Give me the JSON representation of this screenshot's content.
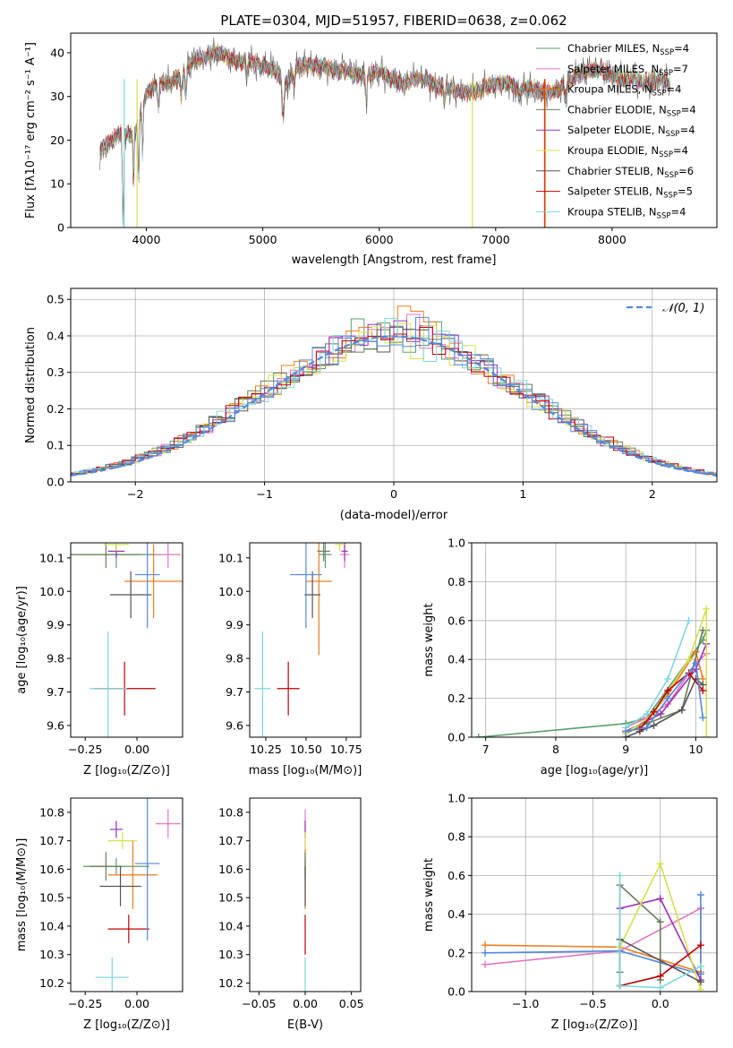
{
  "colors": {
    "chab_miles": "#5a9e6f",
    "salp_miles": "#e377c2",
    "krou_miles": "#ee7d1e",
    "chab_elodie": "#687d5a",
    "salp_elodie": "#9a31b5",
    "krou_elodie": "#d4e04a",
    "chab_stelib": "#555555",
    "salp_stelib": "#c00000",
    "krou_stelib": "#7fd8db",
    "blue": "#5588dd"
  },
  "chart_data": [
    {
      "id": "spectrum",
      "type": "line",
      "title": "PLATE=0304, MJD=51957, FIBERID=0638, z=0.062",
      "xlabel": "wavelength [Angstrom, rest frame]",
      "ylabel": "Flux [fλ10⁻¹⁷ erg cm⁻² s⁻¹ A⁻¹]",
      "xlim": [
        3350,
        8900
      ],
      "ylim": [
        0,
        44.5
      ],
      "xticks": [
        "4000",
        "5000",
        "6000",
        "7000",
        "8000"
      ],
      "yticks": [
        "0",
        "10",
        "20",
        "30",
        "40"
      ],
      "legend_position": "top-right",
      "continuum_x": [
        3600,
        3700,
        3800,
        3900,
        4000,
        4100,
        4200,
        4300,
        4400,
        4500,
        4600,
        4700,
        4800,
        4900,
        5000,
        5100,
        5200,
        5300,
        5400,
        5500,
        5600,
        5700,
        5800,
        5900,
        6000,
        6100,
        6200,
        6300,
        6400,
        6500,
        6600,
        6700,
        6800,
        6900,
        7000,
        7100,
        7200,
        7300,
        7400,
        7500,
        7600,
        7700,
        7800,
        7900,
        8000,
        8100,
        8200,
        8300,
        8400,
        8500
      ],
      "continuum_y": [
        17,
        20,
        22,
        21,
        31,
        33,
        33,
        35,
        38,
        39,
        40,
        39,
        38,
        38,
        37,
        36,
        33,
        37,
        37,
        37,
        36,
        36,
        35,
        35,
        36,
        34,
        33,
        34,
        34,
        32,
        32,
        31,
        31,
        32,
        33,
        33,
        32,
        32,
        31,
        31,
        33,
        35,
        36,
        36,
        35,
        34,
        34,
        33,
        34,
        33
      ],
      "series": [
        {
          "name": "Chabrier MILES, N_SSP=4",
          "color_key": "chab_miles"
        },
        {
          "name": "Salpeter MILES, N_SSP=7",
          "color_key": "salp_miles"
        },
        {
          "name": "Kroupa MILES, N_SSP=4",
          "color_key": "krou_miles"
        },
        {
          "name": "Chabrier ELODIE, N_SSP=4",
          "color_key": "chab_elodie"
        },
        {
          "name": "Salpeter ELODIE, N_SSP=4",
          "color_key": "salp_elodie"
        },
        {
          "name": "Kroupa ELODIE, N_SSP=4",
          "color_key": "krou_elodie"
        },
        {
          "name": "Chabrier STELIB, N_SSP=6",
          "color_key": "chab_stelib"
        },
        {
          "name": "Salpeter STELIB, N_SSP=5",
          "color_key": "salp_stelib"
        },
        {
          "name": "Kroupa STELIB, N_SSP=4",
          "color_key": "krou_stelib"
        }
      ],
      "legend": [
        {
          "main": "Chabrier MILES, N",
          "sub": "SSP",
          "tail": "=4",
          "color_key": "chab_miles"
        },
        {
          "main": "Salpeter MILES, N",
          "sub": "SSP",
          "tail": "=7",
          "color_key": "salp_miles"
        },
        {
          "main": "Kroupa MILES, N",
          "sub": "SSP",
          "tail": "=4",
          "color_key": "krou_miles"
        },
        {
          "main": "Chabrier ELODIE, N",
          "sub": "SSP",
          "tail": "=4",
          "color_key": "chab_elodie"
        },
        {
          "main": "Salpeter ELODIE, N",
          "sub": "SSP",
          "tail": "=4",
          "color_key": "salp_elodie"
        },
        {
          "main": "Kroupa ELODIE, N",
          "sub": "SSP",
          "tail": "=4",
          "color_key": "krou_elodie"
        },
        {
          "main": "Chabrier STELIB, N",
          "sub": "SSP",
          "tail": "=6",
          "color_key": "chab_stelib"
        },
        {
          "main": "Salpeter STELIB, N",
          "sub": "SSP",
          "tail": "=5",
          "color_key": "salp_stelib"
        },
        {
          "main": "Kroupa STELIB, N",
          "sub": "SSP",
          "tail": "=4",
          "color_key": "krou_stelib"
        }
      ]
    },
    {
      "id": "residuals",
      "type": "histogram",
      "xlabel": "(data-model)/error",
      "ylabel": "Normed distribution",
      "xlim": [
        -2.5,
        2.5
      ],
      "ylim": [
        0,
        0.53
      ],
      "xticks": [
        "−2",
        "−1",
        "0",
        "1",
        "2"
      ],
      "yticks": [
        "0.0",
        "0.1",
        "0.2",
        "0.3",
        "0.4",
        "0.5"
      ],
      "grid": true,
      "bin_width": 0.1,
      "legend_label": "𝒩(0, 1)",
      "legend_position": "top-right",
      "gaussian": {
        "mu": 0,
        "sigma": 1,
        "color_key": "blue"
      },
      "histogram_color_keys": [
        "chab_miles",
        "salp_miles",
        "krou_miles",
        "chab_elodie",
        "salp_elodie",
        "krou_elodie",
        "chab_stelib",
        "salp_stelib",
        "krou_stelib",
        "blue"
      ]
    },
    {
      "id": "age-vs-Z",
      "type": "errorbar",
      "xlabel": "Z [log₁₀(Z/Z⊙)]",
      "ylabel": "age  [log₁₀(age/yr)]",
      "xlim": [
        -0.32,
        0.22
      ],
      "ylim": [
        9.565,
        10.145
      ],
      "xticks": [
        "−0.25",
        "0.00"
      ],
      "xtick_values": [
        -0.25,
        0.0
      ],
      "yticks": [
        "9.6",
        "9.7",
        "9.8",
        "9.9",
        "10.0",
        "10.1"
      ],
      "ytick_values": [
        9.6,
        9.7,
        9.8,
        9.9,
        10.0,
        10.1
      ],
      "points": [
        {
          "x": -0.1,
          "y": 10.11,
          "xerr": 0.22,
          "yerr": 0.04,
          "color_key": "chab_miles"
        },
        {
          "x": 0.15,
          "y": 10.11,
          "xerr": 0.06,
          "yerr": 0.04,
          "color_key": "salp_miles"
        },
        {
          "x": 0.08,
          "y": 10.03,
          "xerr": 0.14,
          "yerr": 0.11,
          "color_key": "krou_miles"
        },
        {
          "x": -0.15,
          "y": 10.11,
          "xerr": 0.17,
          "yerr": 0.04,
          "color_key": "chab_elodie"
        },
        {
          "x": -0.1,
          "y": 10.12,
          "xerr": 0.04,
          "yerr": 0.02,
          "color_key": "salp_elodie"
        },
        {
          "x": -0.1,
          "y": 10.14,
          "xerr": 0.06,
          "yerr": 0.02,
          "color_key": "krou_elodie"
        },
        {
          "x": -0.03,
          "y": 9.99,
          "xerr": 0.1,
          "yerr": 0.07,
          "color_key": "chab_stelib"
        },
        {
          "x": -0.06,
          "y": 9.71,
          "xerr": 0.15,
          "yerr": 0.08,
          "color_key": "salp_stelib"
        },
        {
          "x": -0.14,
          "y": 9.71,
          "xerr": 0.09,
          "yerr": 0.17,
          "color_key": "krou_stelib"
        },
        {
          "x": 0.05,
          "y": 10.05,
          "xerr": 0.06,
          "yerr": 0.16,
          "color_key": "blue"
        }
      ]
    },
    {
      "id": "age-vs-mass",
      "type": "errorbar",
      "xlabel": "mass [log₁₀(M/M⊙)]",
      "xlim": [
        10.15,
        10.84
      ],
      "ylim": [
        9.565,
        10.145
      ],
      "xticks": [
        "10.25",
        "10.50",
        "10.75"
      ],
      "xtick_values": [
        10.25,
        10.5,
        10.75
      ],
      "yticks": [
        "9.6",
        "9.7",
        "9.8",
        "9.9",
        "10.0",
        "10.1"
      ],
      "ytick_values": [
        9.6,
        9.7,
        9.8,
        9.9,
        10.0,
        10.1
      ],
      "points": [
        {
          "x": 10.62,
          "y": 10.11,
          "xerr": 0.04,
          "yerr": 0.04,
          "color_key": "chab_miles"
        },
        {
          "x": 10.74,
          "y": 10.11,
          "xerr": 0.03,
          "yerr": 0.04,
          "color_key": "salp_miles"
        },
        {
          "x": 10.58,
          "y": 10.03,
          "xerr": 0.08,
          "yerr": 0.22,
          "color_key": "krou_miles"
        },
        {
          "x": 10.61,
          "y": 10.12,
          "xerr": 0.04,
          "yerr": 0.03,
          "color_key": "chab_elodie"
        },
        {
          "x": 10.74,
          "y": 10.12,
          "xerr": 0.02,
          "yerr": 0.03,
          "color_key": "salp_elodie"
        },
        {
          "x": 10.71,
          "y": 10.14,
          "xerr": 0.03,
          "yerr": 0.02,
          "color_key": "krou_elodie"
        },
        {
          "x": 10.54,
          "y": 9.99,
          "xerr": 0.05,
          "yerr": 0.07,
          "color_key": "chab_stelib"
        },
        {
          "x": 10.39,
          "y": 9.71,
          "xerr": 0.07,
          "yerr": 0.08,
          "color_key": "salp_stelib"
        },
        {
          "x": 10.23,
          "y": 9.71,
          "xerr": 0.05,
          "yerr": 0.17,
          "color_key": "krou_stelib"
        },
        {
          "x": 10.5,
          "y": 10.05,
          "xerr": 0.1,
          "yerr": 0.16,
          "color_key": "blue"
        }
      ]
    },
    {
      "id": "weight-vs-age",
      "type": "line",
      "xlabel": "age  [log₁₀(age/yr)]",
      "ylabel": "mass weight",
      "xlim": [
        6.8,
        10.3
      ],
      "ylim": [
        0,
        1
      ],
      "xticks": [
        "7",
        "8",
        "9",
        "10"
      ],
      "xtick_values": [
        7,
        8,
        9,
        10
      ],
      "yticks": [
        "0.0",
        "0.2",
        "0.4",
        "0.6",
        "0.8",
        "1.0"
      ],
      "ytick_values": [
        0,
        0.2,
        0.4,
        0.6,
        0.8,
        1.0
      ],
      "grid": true,
      "series": [
        {
          "color_key": "chab_miles",
          "x": [
            6.9,
            9.0,
            9.3,
            10.1,
            10.15
          ],
          "y": [
            0.0,
            0.07,
            0.1,
            0.5,
            0.55
          ]
        },
        {
          "color_key": "salp_miles",
          "x": [
            9.0,
            9.3,
            9.6,
            10.0,
            10.15
          ],
          "y": [
            0.05,
            0.1,
            0.17,
            0.38,
            0.43
          ]
        },
        {
          "color_key": "krou_miles",
          "x": [
            9.0,
            9.3,
            9.6,
            10.0,
            10.1
          ],
          "y": [
            0.03,
            0.08,
            0.22,
            0.44,
            0.3
          ]
        },
        {
          "color_key": "chab_elodie",
          "x": [
            9.0,
            9.3,
            9.8,
            10.1
          ],
          "y": [
            0.02,
            0.07,
            0.14,
            0.55
          ]
        },
        {
          "color_key": "salp_elodie",
          "x": [
            9.0,
            9.5,
            10.0,
            10.15
          ],
          "y": [
            0.03,
            0.12,
            0.35,
            0.48
          ]
        },
        {
          "color_key": "krou_elodie",
          "x": [
            9.0,
            9.4,
            9.9,
            10.15,
            10.15
          ],
          "y": [
            0.02,
            0.12,
            0.4,
            0.66,
            0.0
          ]
        },
        {
          "color_key": "chab_stelib",
          "x": [
            9.0,
            9.2,
            9.4,
            9.8,
            10.0,
            10.1
          ],
          "y": [
            0.0,
            0.03,
            0.06,
            0.14,
            0.3,
            0.27
          ]
        },
        {
          "color_key": "salp_stelib",
          "x": [
            9.2,
            9.4,
            9.6,
            9.9,
            10.1
          ],
          "y": [
            0.04,
            0.13,
            0.24,
            0.33,
            0.24
          ]
        },
        {
          "color_key": "krou_stelib",
          "x": [
            9.0,
            9.3,
            9.6,
            9.9
          ],
          "y": [
            0.05,
            0.12,
            0.3,
            0.6
          ]
        },
        {
          "color_key": "blue",
          "x": [
            9.0,
            9.3,
            9.6,
            10.0,
            10.1
          ],
          "y": [
            0.03,
            0.05,
            0.2,
            0.38,
            0.1
          ]
        }
      ]
    },
    {
      "id": "mass-vs-Z",
      "type": "errorbar",
      "xlabel": "Z [log₁₀(Z/Z⊙)]",
      "ylabel": "mass [log₁₀(M/M⊙)]",
      "xlim": [
        -0.32,
        0.22
      ],
      "ylim": [
        10.17,
        10.85
      ],
      "xticks": [
        "−0.25",
        "0.00"
      ],
      "xtick_values": [
        -0.25,
        0.0
      ],
      "yticks": [
        "10.2",
        "10.3",
        "10.4",
        "10.5",
        "10.6",
        "10.7",
        "10.8"
      ],
      "ytick_values": [
        10.2,
        10.3,
        10.4,
        10.5,
        10.6,
        10.7,
        10.8
      ],
      "points": [
        {
          "x": -0.1,
          "y": 10.61,
          "xerr": 0.16,
          "yerr": 0.03,
          "color_key": "chab_miles"
        },
        {
          "x": 0.15,
          "y": 10.76,
          "xerr": 0.06,
          "yerr": 0.05,
          "color_key": "salp_miles"
        },
        {
          "x": -0.02,
          "y": 10.58,
          "xerr": 0.12,
          "yerr": 0.12,
          "color_key": "krou_miles"
        },
        {
          "x": -0.15,
          "y": 10.61,
          "xerr": 0.08,
          "yerr": 0.05,
          "color_key": "chab_elodie"
        },
        {
          "x": -0.1,
          "y": 10.74,
          "xerr": 0.03,
          "yerr": 0.03,
          "color_key": "salp_elodie"
        },
        {
          "x": -0.07,
          "y": 10.7,
          "xerr": 0.07,
          "yerr": 0.03,
          "color_key": "krou_elodie"
        },
        {
          "x": -0.08,
          "y": 10.54,
          "xerr": 0.1,
          "yerr": 0.07,
          "color_key": "chab_stelib"
        },
        {
          "x": -0.04,
          "y": 10.39,
          "xerr": 0.1,
          "yerr": 0.05,
          "color_key": "salp_stelib"
        },
        {
          "x": -0.12,
          "y": 10.22,
          "xerr": 0.08,
          "yerr": 0.07,
          "color_key": "krou_stelib"
        },
        {
          "x": 0.05,
          "y": 10.62,
          "xerr": 0.06,
          "yerr": 0.27,
          "color_key": "blue"
        }
      ]
    },
    {
      "id": "mass-vs-EBV",
      "type": "errorbar",
      "xlabel": "E(B-V)",
      "xlim": [
        -0.06,
        0.06
      ],
      "ylim": [
        10.17,
        10.85
      ],
      "xticks": [
        "−0.05",
        "0.00",
        "0.05"
      ],
      "xtick_values": [
        -0.05,
        0.0,
        0.05
      ],
      "yticks": [
        "10.2",
        "10.3",
        "10.4",
        "10.5",
        "10.6",
        "10.7",
        "10.8"
      ],
      "ytick_values": [
        10.2,
        10.3,
        10.4,
        10.5,
        10.6,
        10.7,
        10.8
      ],
      "points": [
        {
          "x": 0,
          "y": 10.61,
          "xerr": 0,
          "yerr": 0.03,
          "color_key": "chab_miles"
        },
        {
          "x": 0,
          "y": 10.76,
          "xerr": 0,
          "yerr": 0.05,
          "color_key": "salp_miles"
        },
        {
          "x": 0,
          "y": 10.58,
          "xerr": 0,
          "yerr": 0.12,
          "color_key": "krou_miles"
        },
        {
          "x": 0,
          "y": 10.61,
          "xerr": 0,
          "yerr": 0.05,
          "color_key": "chab_elodie"
        },
        {
          "x": 0,
          "y": 10.74,
          "xerr": 0,
          "yerr": 0.03,
          "color_key": "salp_elodie"
        },
        {
          "x": 0,
          "y": 10.7,
          "xerr": 0,
          "yerr": 0.03,
          "color_key": "krou_elodie"
        },
        {
          "x": 0,
          "y": 10.54,
          "xerr": 0,
          "yerr": 0.07,
          "color_key": "chab_stelib"
        },
        {
          "x": 0,
          "y": 10.37,
          "xerr": 0,
          "yerr": 0.07,
          "color_key": "salp_stelib"
        },
        {
          "x": 0,
          "y": 10.22,
          "xerr": 0,
          "yerr": 0.07,
          "color_key": "krou_stelib"
        }
      ]
    },
    {
      "id": "weight-vs-Z",
      "type": "line",
      "xlabel": "Z [log₁₀(Z/Z⊙)]",
      "ylabel": "mass weight",
      "xlim": [
        -1.4,
        0.42
      ],
      "ylim": [
        0,
        1
      ],
      "xticks": [
        "−1.0",
        "−0.5",
        "0.0"
      ],
      "xtick_values": [
        -1.0,
        -0.5,
        0.0
      ],
      "yticks": [
        "0.0",
        "0.2",
        "0.4",
        "0.6",
        "0.8",
        "1.0"
      ],
      "ytick_values": [
        0,
        0.2,
        0.4,
        0.6,
        0.8,
        1.0
      ],
      "grid": true,
      "series": [
        {
          "color_key": "krou_miles",
          "x": [
            -1.3,
            -0.3,
            0.3,
            0.3
          ],
          "y": [
            0.24,
            0.23,
            0.1,
            0.43
          ]
        },
        {
          "color_key": "salp_miles",
          "x": [
            -1.3,
            -0.3,
            0.3
          ],
          "y": [
            0.14,
            0.21,
            0.43
          ]
        },
        {
          "color_key": "blue",
          "x": [
            -1.3,
            -0.3,
            0.3,
            0.3
          ],
          "y": [
            0.2,
            0.21,
            0.09,
            0.5
          ]
        },
        {
          "color_key": "chab_elodie",
          "x": [
            -0.3,
            -0.3,
            0.0,
            0.0
          ],
          "y": [
            0.1,
            0.55,
            0.36,
            0.06
          ]
        },
        {
          "color_key": "salp_elodie",
          "x": [
            -0.3,
            0.0,
            0.3
          ],
          "y": [
            0.43,
            0.48,
            0.06
          ]
        },
        {
          "color_key": "krou_elodie",
          "x": [
            -0.3,
            0.0,
            0.3
          ],
          "y": [
            0.23,
            0.66,
            0.01
          ]
        },
        {
          "color_key": "chab_stelib",
          "x": [
            -0.3,
            -0.3,
            0.3
          ],
          "y": [
            0.03,
            0.27,
            0.05
          ]
        },
        {
          "color_key": "salp_stelib",
          "x": [
            -0.3,
            0.0,
            0.3
          ],
          "y": [
            0.03,
            0.08,
            0.24
          ]
        },
        {
          "color_key": "krou_stelib",
          "x": [
            -0.3,
            -0.3,
            0.0,
            0.3
          ],
          "y": [
            0.6,
            0.03,
            0.02,
            0.13
          ]
        }
      ]
    }
  ]
}
